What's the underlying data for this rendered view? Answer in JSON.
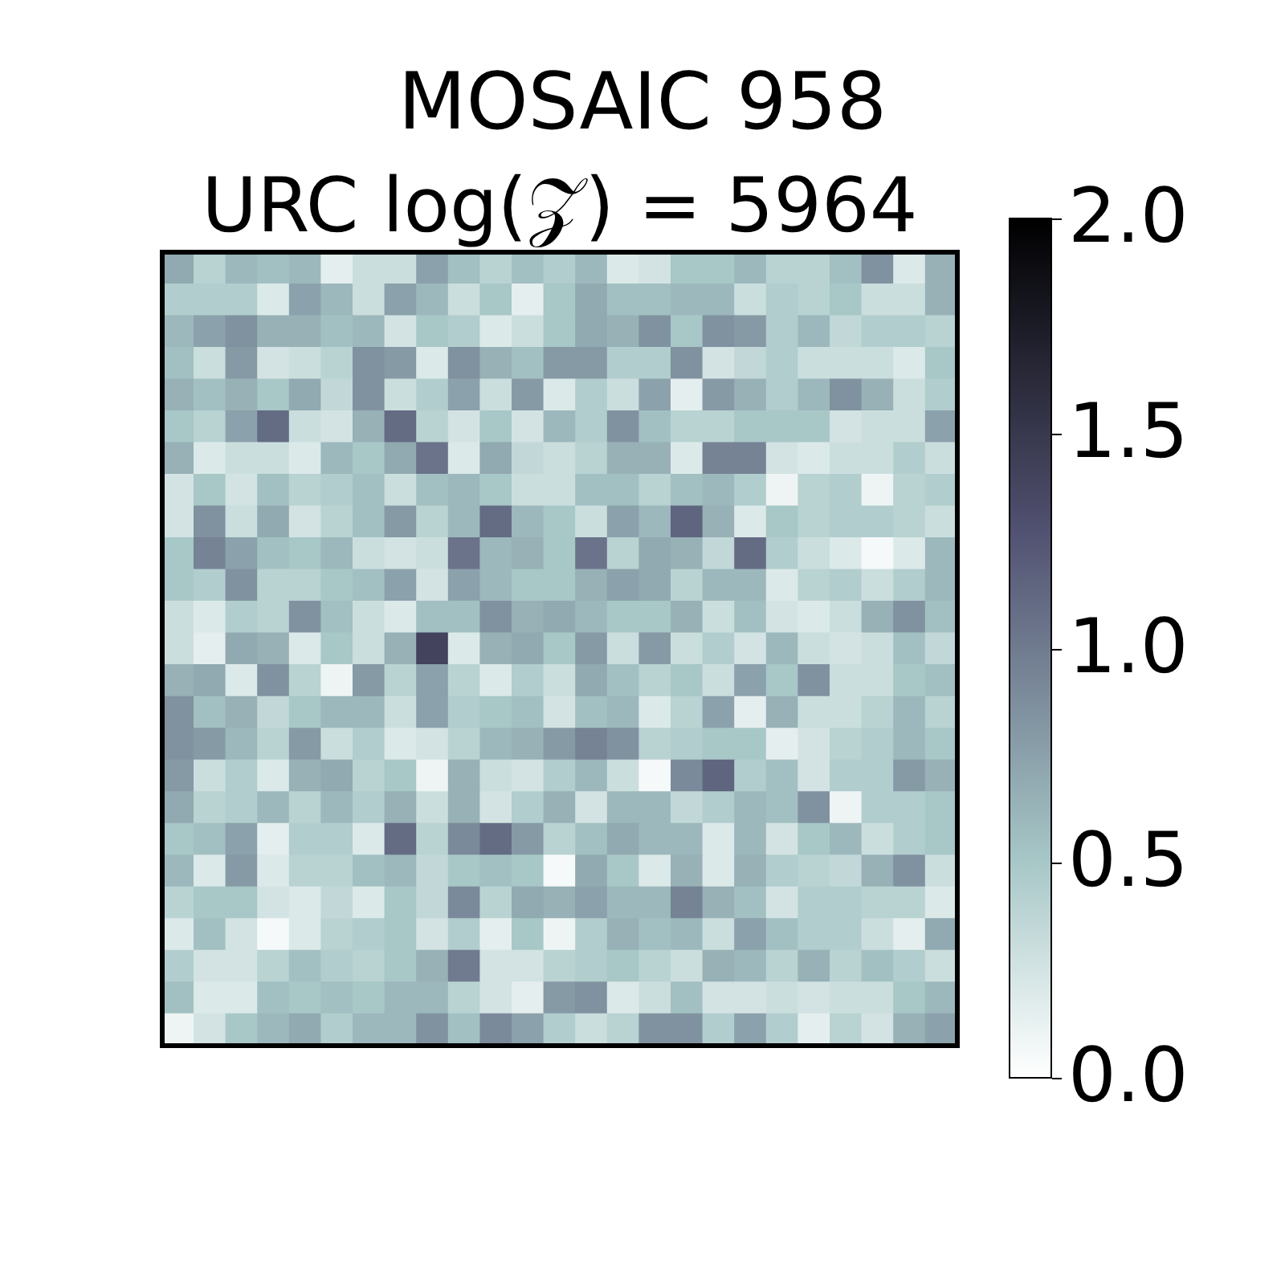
{
  "chart_data": {
    "type": "heatmap",
    "title": "MOSAIC 958",
    "subtitle": "URC log(𝒵) = 5964",
    "categories": [
      null,
      null,
      null,
      null,
      null,
      null,
      null,
      null,
      null,
      null,
      null,
      null,
      null,
      null,
      null,
      null,
      null,
      null,
      null,
      null,
      null,
      null,
      null,
      null,
      null
    ],
    "y_categories": [
      null,
      null,
      null,
      null,
      null,
      null,
      null,
      null,
      null,
      null,
      null,
      null,
      null,
      null,
      null,
      null,
      null,
      null,
      null,
      null,
      null,
      null,
      null,
      null,
      null
    ],
    "cells": [
      [
        0.7,
        0.4,
        0.6,
        0.55,
        0.6,
        0.15,
        0.3,
        0.3,
        0.75,
        0.55,
        0.4,
        0.55,
        0.45,
        0.6,
        0.2,
        0.25,
        0.5,
        0.5,
        0.6,
        0.4,
        0.4,
        0.55,
        0.85,
        0.2,
        0.65
      ],
      [
        0.45,
        0.45,
        0.45,
        0.2,
        0.75,
        0.6,
        0.3,
        0.75,
        0.6,
        0.3,
        0.5,
        0.15,
        0.5,
        0.7,
        0.55,
        0.55,
        0.6,
        0.6,
        0.3,
        0.45,
        0.4,
        0.5,
        0.3,
        0.3,
        0.65
      ],
      [
        0.6,
        0.75,
        0.85,
        0.65,
        0.65,
        0.55,
        0.6,
        0.25,
        0.5,
        0.45,
        0.2,
        0.3,
        0.5,
        0.7,
        0.65,
        0.85,
        0.5,
        0.85,
        0.8,
        0.45,
        0.6,
        0.35,
        0.45,
        0.45,
        0.4
      ],
      [
        0.55,
        0.3,
        0.8,
        0.25,
        0.3,
        0.4,
        0.85,
        0.8,
        0.2,
        0.85,
        0.65,
        0.55,
        0.8,
        0.8,
        0.45,
        0.45,
        0.85,
        0.25,
        0.35,
        0.45,
        0.3,
        0.3,
        0.3,
        0.2,
        0.5
      ],
      [
        0.65,
        0.55,
        0.65,
        0.5,
        0.7,
        0.35,
        0.85,
        0.3,
        0.45,
        0.75,
        0.3,
        0.8,
        0.2,
        0.45,
        0.3,
        0.75,
        0.15,
        0.8,
        0.65,
        0.45,
        0.6,
        0.85,
        0.65,
        0.3,
        0.45
      ],
      [
        0.5,
        0.4,
        0.75,
        1.1,
        0.3,
        0.25,
        0.65,
        1.1,
        0.4,
        0.25,
        0.5,
        0.25,
        0.6,
        0.45,
        0.85,
        0.55,
        0.4,
        0.4,
        0.5,
        0.5,
        0.5,
        0.25,
        0.3,
        0.3,
        0.75
      ],
      [
        0.65,
        0.2,
        0.3,
        0.3,
        0.2,
        0.6,
        0.5,
        0.7,
        1.05,
        0.2,
        0.7,
        0.35,
        0.3,
        0.4,
        0.65,
        0.65,
        0.2,
        0.95,
        0.95,
        0.25,
        0.2,
        0.3,
        0.3,
        0.45,
        0.3
      ],
      [
        0.25,
        0.5,
        0.25,
        0.55,
        0.4,
        0.45,
        0.55,
        0.3,
        0.55,
        0.6,
        0.5,
        0.3,
        0.3,
        0.55,
        0.55,
        0.4,
        0.55,
        0.6,
        0.45,
        0.1,
        0.4,
        0.45,
        0.1,
        0.4,
        0.45
      ],
      [
        0.25,
        0.85,
        0.3,
        0.7,
        0.25,
        0.4,
        0.55,
        0.8,
        0.4,
        0.6,
        1.1,
        0.6,
        0.5,
        0.3,
        0.75,
        0.6,
        1.15,
        0.65,
        0.2,
        0.5,
        0.4,
        0.45,
        0.45,
        0.4,
        0.3
      ],
      [
        0.5,
        0.95,
        0.75,
        0.55,
        0.5,
        0.6,
        0.3,
        0.25,
        0.3,
        1.05,
        0.6,
        0.65,
        0.5,
        1.05,
        0.4,
        0.7,
        0.65,
        0.35,
        1.1,
        0.45,
        0.3,
        0.2,
        0.05,
        0.2,
        0.6
      ],
      [
        0.5,
        0.45,
        0.85,
        0.4,
        0.4,
        0.5,
        0.55,
        0.75,
        0.25,
        0.75,
        0.6,
        0.5,
        0.5,
        0.65,
        0.75,
        0.7,
        0.4,
        0.6,
        0.6,
        0.2,
        0.4,
        0.45,
        0.3,
        0.45,
        0.6
      ],
      [
        0.3,
        0.2,
        0.45,
        0.4,
        0.85,
        0.55,
        0.3,
        0.2,
        0.55,
        0.55,
        0.85,
        0.65,
        0.7,
        0.6,
        0.5,
        0.5,
        0.65,
        0.3,
        0.55,
        0.25,
        0.2,
        0.3,
        0.65,
        0.85,
        0.55
      ],
      [
        0.3,
        0.15,
        0.7,
        0.65,
        0.2,
        0.5,
        0.3,
        0.65,
        1.4,
        0.2,
        0.65,
        0.7,
        0.5,
        0.8,
        0.3,
        0.8,
        0.3,
        0.45,
        0.25,
        0.6,
        0.3,
        0.25,
        0.3,
        0.55,
        0.35
      ],
      [
        0.65,
        0.7,
        0.2,
        0.85,
        0.4,
        0.1,
        0.8,
        0.4,
        0.75,
        0.4,
        0.2,
        0.45,
        0.3,
        0.7,
        0.55,
        0.4,
        0.5,
        0.3,
        0.75,
        0.5,
        0.85,
        0.3,
        0.3,
        0.5,
        0.55
      ],
      [
        0.85,
        0.55,
        0.65,
        0.35,
        0.5,
        0.6,
        0.6,
        0.3,
        0.75,
        0.45,
        0.5,
        0.55,
        0.25,
        0.55,
        0.6,
        0.2,
        0.4,
        0.75,
        0.15,
        0.65,
        0.3,
        0.3,
        0.4,
        0.6,
        0.4
      ],
      [
        0.85,
        0.8,
        0.6,
        0.4,
        0.8,
        0.3,
        0.45,
        0.2,
        0.25,
        0.4,
        0.6,
        0.65,
        0.8,
        0.95,
        0.85,
        0.4,
        0.45,
        0.5,
        0.5,
        0.15,
        0.25,
        0.4,
        0.45,
        0.6,
        0.5
      ],
      [
        0.8,
        0.3,
        0.45,
        0.2,
        0.65,
        0.7,
        0.4,
        0.5,
        0.1,
        0.65,
        0.3,
        0.25,
        0.45,
        0.6,
        0.3,
        0.05,
        0.9,
        1.15,
        0.45,
        0.55,
        0.25,
        0.45,
        0.45,
        0.8,
        0.65
      ],
      [
        0.7,
        0.4,
        0.45,
        0.6,
        0.4,
        0.6,
        0.45,
        0.65,
        0.3,
        0.65,
        0.25,
        0.45,
        0.65,
        0.25,
        0.6,
        0.6,
        0.35,
        0.45,
        0.6,
        0.55,
        0.85,
        0.1,
        0.45,
        0.45,
        0.5
      ],
      [
        0.5,
        0.55,
        0.75,
        0.15,
        0.45,
        0.45,
        0.2,
        1.1,
        0.4,
        0.9,
        1.1,
        0.8,
        0.4,
        0.55,
        0.7,
        0.6,
        0.6,
        0.2,
        0.6,
        0.25,
        0.5,
        0.6,
        0.3,
        0.45,
        0.5
      ],
      [
        0.6,
        0.2,
        0.8,
        0.2,
        0.4,
        0.4,
        0.55,
        0.6,
        0.35,
        0.5,
        0.55,
        0.5,
        0.05,
        0.7,
        0.5,
        0.2,
        0.65,
        0.2,
        0.65,
        0.45,
        0.4,
        0.35,
        0.65,
        0.85,
        0.3
      ],
      [
        0.4,
        0.5,
        0.5,
        0.25,
        0.2,
        0.35,
        0.2,
        0.5,
        0.35,
        0.9,
        0.4,
        0.7,
        0.65,
        0.75,
        0.6,
        0.6,
        0.95,
        0.65,
        0.55,
        0.25,
        0.45,
        0.45,
        0.4,
        0.4,
        0.2
      ],
      [
        0.2,
        0.55,
        0.25,
        0.05,
        0.2,
        0.4,
        0.45,
        0.5,
        0.25,
        0.45,
        0.15,
        0.5,
        0.1,
        0.45,
        0.65,
        0.55,
        0.6,
        0.3,
        0.75,
        0.55,
        0.45,
        0.45,
        0.3,
        0.15,
        0.7
      ],
      [
        0.45,
        0.25,
        0.25,
        0.4,
        0.55,
        0.45,
        0.4,
        0.5,
        0.65,
        1.0,
        0.25,
        0.25,
        0.4,
        0.45,
        0.5,
        0.4,
        0.3,
        0.65,
        0.6,
        0.4,
        0.65,
        0.4,
        0.55,
        0.45,
        0.3
      ],
      [
        0.55,
        0.2,
        0.2,
        0.55,
        0.5,
        0.55,
        0.5,
        0.6,
        0.6,
        0.4,
        0.25,
        0.15,
        0.8,
        0.85,
        0.2,
        0.3,
        0.55,
        0.25,
        0.25,
        0.3,
        0.25,
        0.3,
        0.3,
        0.5,
        0.6
      ],
      [
        0.1,
        0.25,
        0.5,
        0.6,
        0.7,
        0.45,
        0.6,
        0.6,
        0.85,
        0.55,
        0.9,
        0.75,
        0.45,
        0.3,
        0.4,
        0.85,
        0.85,
        0.45,
        0.75,
        0.45,
        0.15,
        0.4,
        0.25,
        0.65,
        0.75
      ]
    ],
    "tick_labels": false,
    "clim": [
      0,
      2
    ],
    "cticks": [
      {
        "value": 0,
        "label": "0.0"
      },
      0.5,
      {
        "value": 1,
        "label": "1.0"
      },
      1.5,
      {
        "value": 2,
        "label": "2.0"
      }
    ]
  }
}
